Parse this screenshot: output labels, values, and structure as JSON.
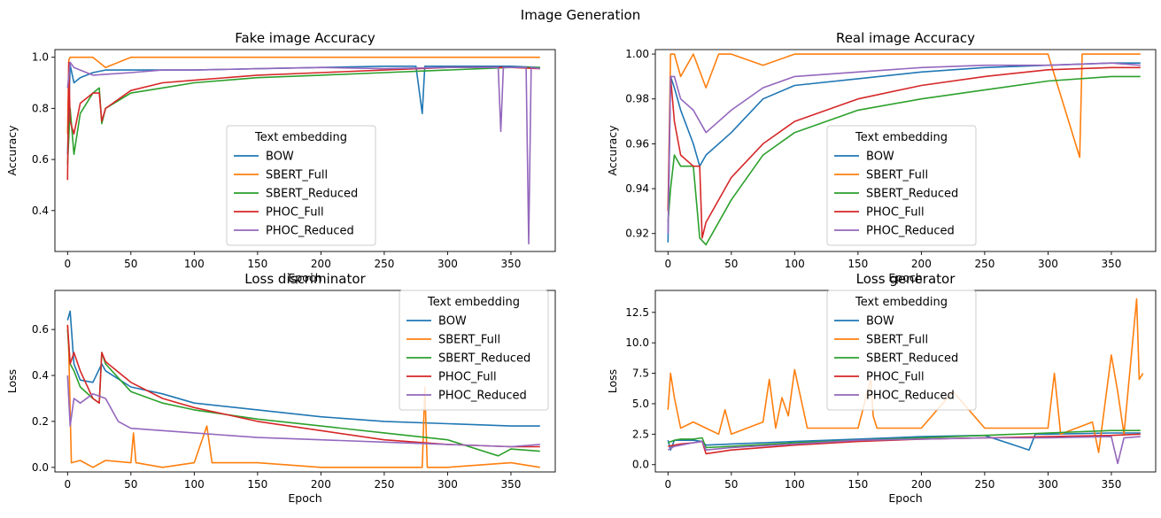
{
  "suptitle": "Image Generation",
  "legend_title": "Text embedding",
  "series_names": [
    "BOW",
    "SBERT_Full",
    "SBERT_Reduced",
    "PHOC_Full",
    "PHOC_Reduced"
  ],
  "series_colors": [
    "#1f77b4",
    "#ff7f0e",
    "#2ca02c",
    "#d62728",
    "#9467bd"
  ],
  "chart_data": [
    {
      "type": "line",
      "title": "Fake image Accuracy",
      "xlabel": "Epoch",
      "ylabel": "Accuracy",
      "xlim": [
        -10,
        385
      ],
      "ylim": [
        0.24,
        1.03
      ],
      "xticks": [
        0,
        50,
        100,
        150,
        200,
        250,
        300,
        350
      ],
      "yticks": [
        0.4,
        0.6,
        0.8,
        1.0
      ],
      "ytick_labels": [
        "0.4",
        "0.6",
        "0.8",
        "1.0"
      ],
      "legend": "lower-center",
      "series": [
        {
          "name": "BOW",
          "x": [
            0,
            2,
            5,
            10,
            20,
            30,
            50,
            75,
            100,
            150,
            200,
            250,
            275,
            280,
            282,
            300,
            350,
            373
          ],
          "y": [
            0.62,
            0.97,
            0.9,
            0.92,
            0.94,
            0.95,
            0.95,
            0.95,
            0.95,
            0.955,
            0.96,
            0.965,
            0.965,
            0.78,
            0.965,
            0.965,
            0.965,
            0.96
          ]
        },
        {
          "name": "SBERT_Full",
          "x": [
            0,
            1,
            2,
            5,
            10,
            20,
            30,
            50,
            75,
            100,
            150,
            200,
            250,
            300,
            350,
            373
          ],
          "y": [
            0.7,
            0.99,
            1.0,
            1.0,
            1.0,
            1.0,
            0.96,
            1.0,
            1.0,
            1.0,
            1.0,
            1.0,
            1.0,
            1.0,
            1.0,
            1.0
          ]
        },
        {
          "name": "SBERT_Reduced",
          "x": [
            0,
            2,
            5,
            10,
            20,
            25,
            27,
            30,
            50,
            75,
            100,
            150,
            200,
            250,
            300,
            350,
            373
          ],
          "y": [
            0.58,
            0.8,
            0.62,
            0.78,
            0.86,
            0.88,
            0.74,
            0.8,
            0.86,
            0.88,
            0.9,
            0.92,
            0.93,
            0.94,
            0.95,
            0.96,
            0.96
          ]
        },
        {
          "name": "PHOC_Full",
          "x": [
            0,
            1,
            2,
            5,
            10,
            20,
            25,
            27,
            30,
            50,
            75,
            100,
            150,
            200,
            250,
            300,
            350,
            373
          ],
          "y": [
            0.52,
            0.98,
            0.75,
            0.7,
            0.82,
            0.86,
            0.86,
            0.75,
            0.8,
            0.87,
            0.9,
            0.91,
            0.93,
            0.94,
            0.95,
            0.96,
            0.96,
            0.955
          ]
        },
        {
          "name": "PHOC_Reduced",
          "x": [
            0,
            2,
            5,
            10,
            20,
            50,
            75,
            100,
            150,
            200,
            250,
            300,
            340,
            342,
            344,
            350,
            362,
            364,
            366,
            373
          ],
          "y": [
            0.88,
            0.98,
            0.96,
            0.95,
            0.93,
            0.94,
            0.95,
            0.95,
            0.955,
            0.96,
            0.955,
            0.96,
            0.96,
            0.71,
            0.96,
            0.96,
            0.96,
            0.27,
            0.96,
            0.955
          ]
        }
      ]
    },
    {
      "type": "line",
      "title": "Real image Accuracy",
      "xlabel": "Epoch",
      "ylabel": "Accuracy",
      "xlim": [
        -10,
        385
      ],
      "ylim": [
        0.912,
        1.002
      ],
      "xticks": [
        0,
        50,
        100,
        150,
        200,
        250,
        300,
        350
      ],
      "yticks": [
        0.92,
        0.94,
        0.96,
        0.98,
        1.0
      ],
      "ytick_labels": [
        "0.92",
        "0.94",
        "0.96",
        "0.98",
        "1.00"
      ],
      "legend": "lower-center",
      "series": [
        {
          "name": "BOW",
          "x": [
            0,
            2,
            5,
            10,
            20,
            25,
            30,
            50,
            75,
            100,
            150,
            200,
            250,
            300,
            350,
            373
          ],
          "y": [
            0.916,
            0.99,
            0.985,
            0.975,
            0.96,
            0.95,
            0.955,
            0.965,
            0.98,
            0.986,
            0.989,
            0.992,
            0.994,
            0.995,
            0.996,
            0.996
          ]
        },
        {
          "name": "SBERT_Full",
          "x": [
            0,
            2,
            5,
            10,
            20,
            30,
            40,
            50,
            75,
            100,
            150,
            200,
            250,
            300,
            325,
            327,
            330,
            350,
            373
          ],
          "y": [
            0.93,
            1.0,
            1.0,
            0.99,
            1.0,
            0.985,
            1.0,
            1.0,
            0.995,
            1.0,
            1.0,
            1.0,
            1.0,
            1.0,
            0.954,
            1.0,
            1.0,
            1.0,
            1.0
          ]
        },
        {
          "name": "SBERT_Reduced",
          "x": [
            0,
            2,
            5,
            10,
            20,
            25,
            30,
            50,
            75,
            100,
            150,
            200,
            250,
            300,
            350,
            373
          ],
          "y": [
            0.925,
            0.94,
            0.955,
            0.95,
            0.95,
            0.918,
            0.915,
            0.935,
            0.955,
            0.965,
            0.975,
            0.98,
            0.984,
            0.988,
            0.99,
            0.99
          ]
        },
        {
          "name": "PHOC_Full",
          "x": [
            0,
            2,
            5,
            10,
            20,
            25,
            27,
            30,
            50,
            75,
            100,
            150,
            200,
            250,
            300,
            350,
            373
          ],
          "y": [
            0.93,
            0.99,
            0.97,
            0.955,
            0.95,
            0.95,
            0.918,
            0.925,
            0.945,
            0.96,
            0.97,
            0.98,
            0.986,
            0.99,
            0.993,
            0.994,
            0.994
          ]
        },
        {
          "name": "PHOC_Reduced",
          "x": [
            0,
            2,
            5,
            10,
            20,
            30,
            50,
            75,
            100,
            150,
            200,
            250,
            300,
            350,
            373
          ],
          "y": [
            0.92,
            0.99,
            0.99,
            0.98,
            0.975,
            0.965,
            0.975,
            0.985,
            0.99,
            0.992,
            0.994,
            0.995,
            0.995,
            0.996,
            0.995
          ]
        }
      ]
    },
    {
      "type": "line",
      "title": "Loss discriminator",
      "xlabel": "Epoch",
      "ylabel": "Loss",
      "xlim": [
        -10,
        385
      ],
      "ylim": [
        -0.02,
        0.77
      ],
      "xticks": [
        0,
        50,
        100,
        150,
        200,
        250,
        300,
        350
      ],
      "yticks": [
        0.0,
        0.2,
        0.4,
        0.6
      ],
      "ytick_labels": [
        "0.0",
        "0.2",
        "0.4",
        "0.6"
      ],
      "legend": "upper-right",
      "series": [
        {
          "name": "BOW",
          "x": [
            0,
            2,
            5,
            10,
            20,
            27,
            30,
            50,
            75,
            100,
            150,
            200,
            250,
            300,
            350,
            373
          ],
          "y": [
            0.64,
            0.68,
            0.45,
            0.38,
            0.37,
            0.45,
            0.42,
            0.35,
            0.32,
            0.28,
            0.25,
            0.22,
            0.2,
            0.19,
            0.18,
            0.18
          ]
        },
        {
          "name": "SBERT_Full",
          "x": [
            0,
            1,
            3,
            10,
            20,
            30,
            50,
            52,
            54,
            75,
            100,
            110,
            112,
            114,
            150,
            200,
            250,
            280,
            282,
            284,
            300,
            350,
            373
          ],
          "y": [
            0.62,
            0.5,
            0.02,
            0.03,
            0.0,
            0.03,
            0.02,
            0.15,
            0.02,
            0.0,
            0.02,
            0.18,
            0.1,
            0.02,
            0.02,
            0.0,
            0.0,
            0.0,
            0.35,
            0.0,
            0.0,
            0.02,
            0.0
          ]
        },
        {
          "name": "SBERT_Reduced",
          "x": [
            0,
            2,
            5,
            10,
            20,
            25,
            27,
            30,
            50,
            75,
            100,
            150,
            200,
            250,
            300,
            340,
            350,
            373
          ],
          "y": [
            0.6,
            0.45,
            0.42,
            0.35,
            0.3,
            0.28,
            0.5,
            0.45,
            0.33,
            0.28,
            0.25,
            0.21,
            0.18,
            0.15,
            0.12,
            0.05,
            0.08,
            0.07
          ]
        },
        {
          "name": "PHOC_Full",
          "x": [
            0,
            2,
            5,
            10,
            20,
            25,
            27,
            30,
            50,
            75,
            100,
            150,
            200,
            250,
            300,
            350,
            373
          ],
          "y": [
            0.62,
            0.45,
            0.5,
            0.42,
            0.3,
            0.28,
            0.5,
            0.46,
            0.37,
            0.3,
            0.26,
            0.2,
            0.16,
            0.12,
            0.1,
            0.09,
            0.09
          ]
        },
        {
          "name": "PHOC_Reduced",
          "x": [
            0,
            2,
            5,
            10,
            20,
            30,
            40,
            50,
            75,
            100,
            150,
            200,
            250,
            300,
            350,
            373
          ],
          "y": [
            0.4,
            0.18,
            0.3,
            0.28,
            0.32,
            0.3,
            0.2,
            0.17,
            0.16,
            0.15,
            0.13,
            0.12,
            0.11,
            0.1,
            0.09,
            0.1
          ]
        }
      ]
    },
    {
      "type": "line",
      "title": "Loss generator",
      "xlabel": "Epoch",
      "ylabel": "Loss",
      "xlim": [
        -10,
        385
      ],
      "ylim": [
        -0.6,
        14.3
      ],
      "xticks": [
        0,
        50,
        100,
        150,
        200,
        250,
        300,
        350
      ],
      "yticks": [
        0.0,
        2.5,
        5.0,
        7.5,
        10.0,
        12.5
      ],
      "ytick_labels": [
        "0.0",
        "2.5",
        "5.0",
        "7.5",
        "10.0",
        "12.5"
      ],
      "legend": "upper-center",
      "series": [
        {
          "name": "BOW",
          "x": [
            0,
            2,
            5,
            10,
            20,
            27,
            30,
            50,
            100,
            150,
            200,
            250,
            285,
            290,
            300,
            350,
            373
          ],
          "y": [
            2.0,
            1.2,
            2.0,
            2.0,
            2.0,
            1.9,
            1.6,
            1.7,
            1.9,
            2.1,
            2.3,
            2.4,
            1.2,
            2.5,
            2.5,
            2.6,
            2.6
          ]
        },
        {
          "name": "SBERT_Full",
          "x": [
            0,
            2,
            5,
            10,
            20,
            30,
            40,
            45,
            50,
            75,
            80,
            85,
            90,
            95,
            100,
            110,
            150,
            160,
            162,
            165,
            200,
            225,
            250,
            300,
            305,
            310,
            335,
            340,
            350,
            355,
            360,
            370,
            372,
            375
          ],
          "y": [
            4.5,
            7.5,
            5.5,
            3.0,
            3.5,
            3.0,
            2.5,
            4.5,
            2.5,
            3.5,
            7.0,
            3.0,
            5.5,
            4.0,
            7.8,
            3.0,
            3.0,
            7.0,
            4.0,
            3.0,
            3.0,
            6.0,
            3.0,
            3.0,
            7.5,
            2.5,
            3.5,
            1.0,
            9.0,
            6.0,
            2.5,
            13.6,
            7.0,
            7.5
          ]
        },
        {
          "name": "SBERT_Reduced",
          "x": [
            0,
            5,
            10,
            20,
            27,
            30,
            50,
            100,
            150,
            200,
            250,
            300,
            350,
            373
          ],
          "y": [
            1.8,
            2.0,
            2.1,
            2.1,
            2.2,
            1.4,
            1.5,
            1.8,
            2.0,
            2.2,
            2.4,
            2.6,
            2.8,
            2.8
          ]
        },
        {
          "name": "PHOC_Full",
          "x": [
            0,
            5,
            10,
            20,
            27,
            30,
            50,
            100,
            150,
            200,
            250,
            300,
            350,
            373
          ],
          "y": [
            1.5,
            1.6,
            1.7,
            1.8,
            1.9,
            0.9,
            1.2,
            1.6,
            1.9,
            2.1,
            2.2,
            2.3,
            2.4,
            2.5
          ]
        },
        {
          "name": "PHOC_Reduced",
          "x": [
            0,
            5,
            10,
            20,
            27,
            30,
            50,
            100,
            150,
            200,
            250,
            300,
            350,
            355,
            360,
            373
          ],
          "y": [
            1.2,
            1.5,
            1.6,
            1.8,
            1.9,
            1.2,
            1.4,
            1.7,
            2.0,
            2.1,
            2.2,
            2.2,
            2.3,
            0.1,
            2.2,
            2.3
          ]
        }
      ]
    }
  ]
}
